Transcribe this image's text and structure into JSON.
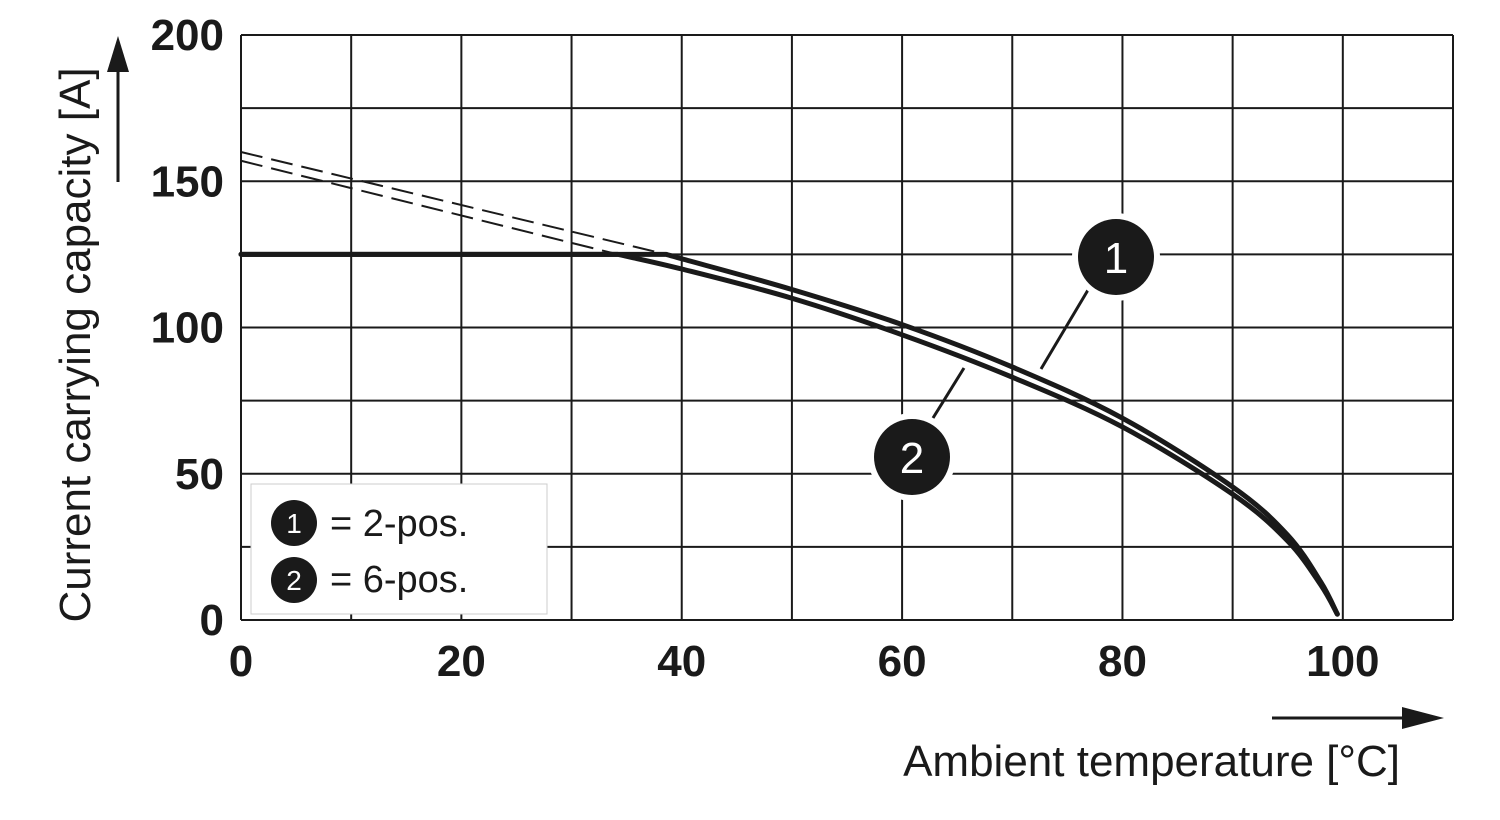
{
  "chart_data": {
    "type": "line",
    "xlabel": "Ambient temperature [°C]",
    "ylabel": "Current carrying capacity [A]",
    "xlim": [
      0,
      110
    ],
    "ylim": [
      0,
      200
    ],
    "x_ticks": [
      0,
      20,
      40,
      60,
      80,
      100
    ],
    "y_ticks": [
      0,
      50,
      100,
      150,
      200
    ],
    "x_grid_step": 10,
    "y_grid_step": 25,
    "grid": true,
    "legend_position": "bottom-left",
    "line_color": "#1a1a1a",
    "series": [
      {
        "marker": "1",
        "legend_label": "= 2-pos.",
        "max_current": 125,
        "x": [
          0,
          38.6,
          40,
          50,
          60,
          70,
          80,
          90,
          95,
          98,
          99.5
        ],
        "y": [
          125,
          125,
          123.5,
          113,
          101,
          86.5,
          69,
          45.5,
          29,
          13,
          2
        ],
        "dashed_extension": {
          "x": [
            0,
            38.6
          ],
          "y": [
            160,
            125
          ]
        }
      },
      {
        "marker": "2",
        "legend_label": "= 6-pos.",
        "max_current": 125,
        "x": [
          0,
          34.2,
          40,
          50,
          60,
          70,
          80,
          90,
          95,
          98,
          99.5
        ],
        "y": [
          125,
          125,
          120,
          110,
          97.5,
          83,
          66,
          43,
          27,
          12,
          2
        ],
        "dashed_extension": {
          "x": [
            0,
            34.2
          ],
          "y": [
            157,
            125
          ]
        }
      }
    ]
  }
}
